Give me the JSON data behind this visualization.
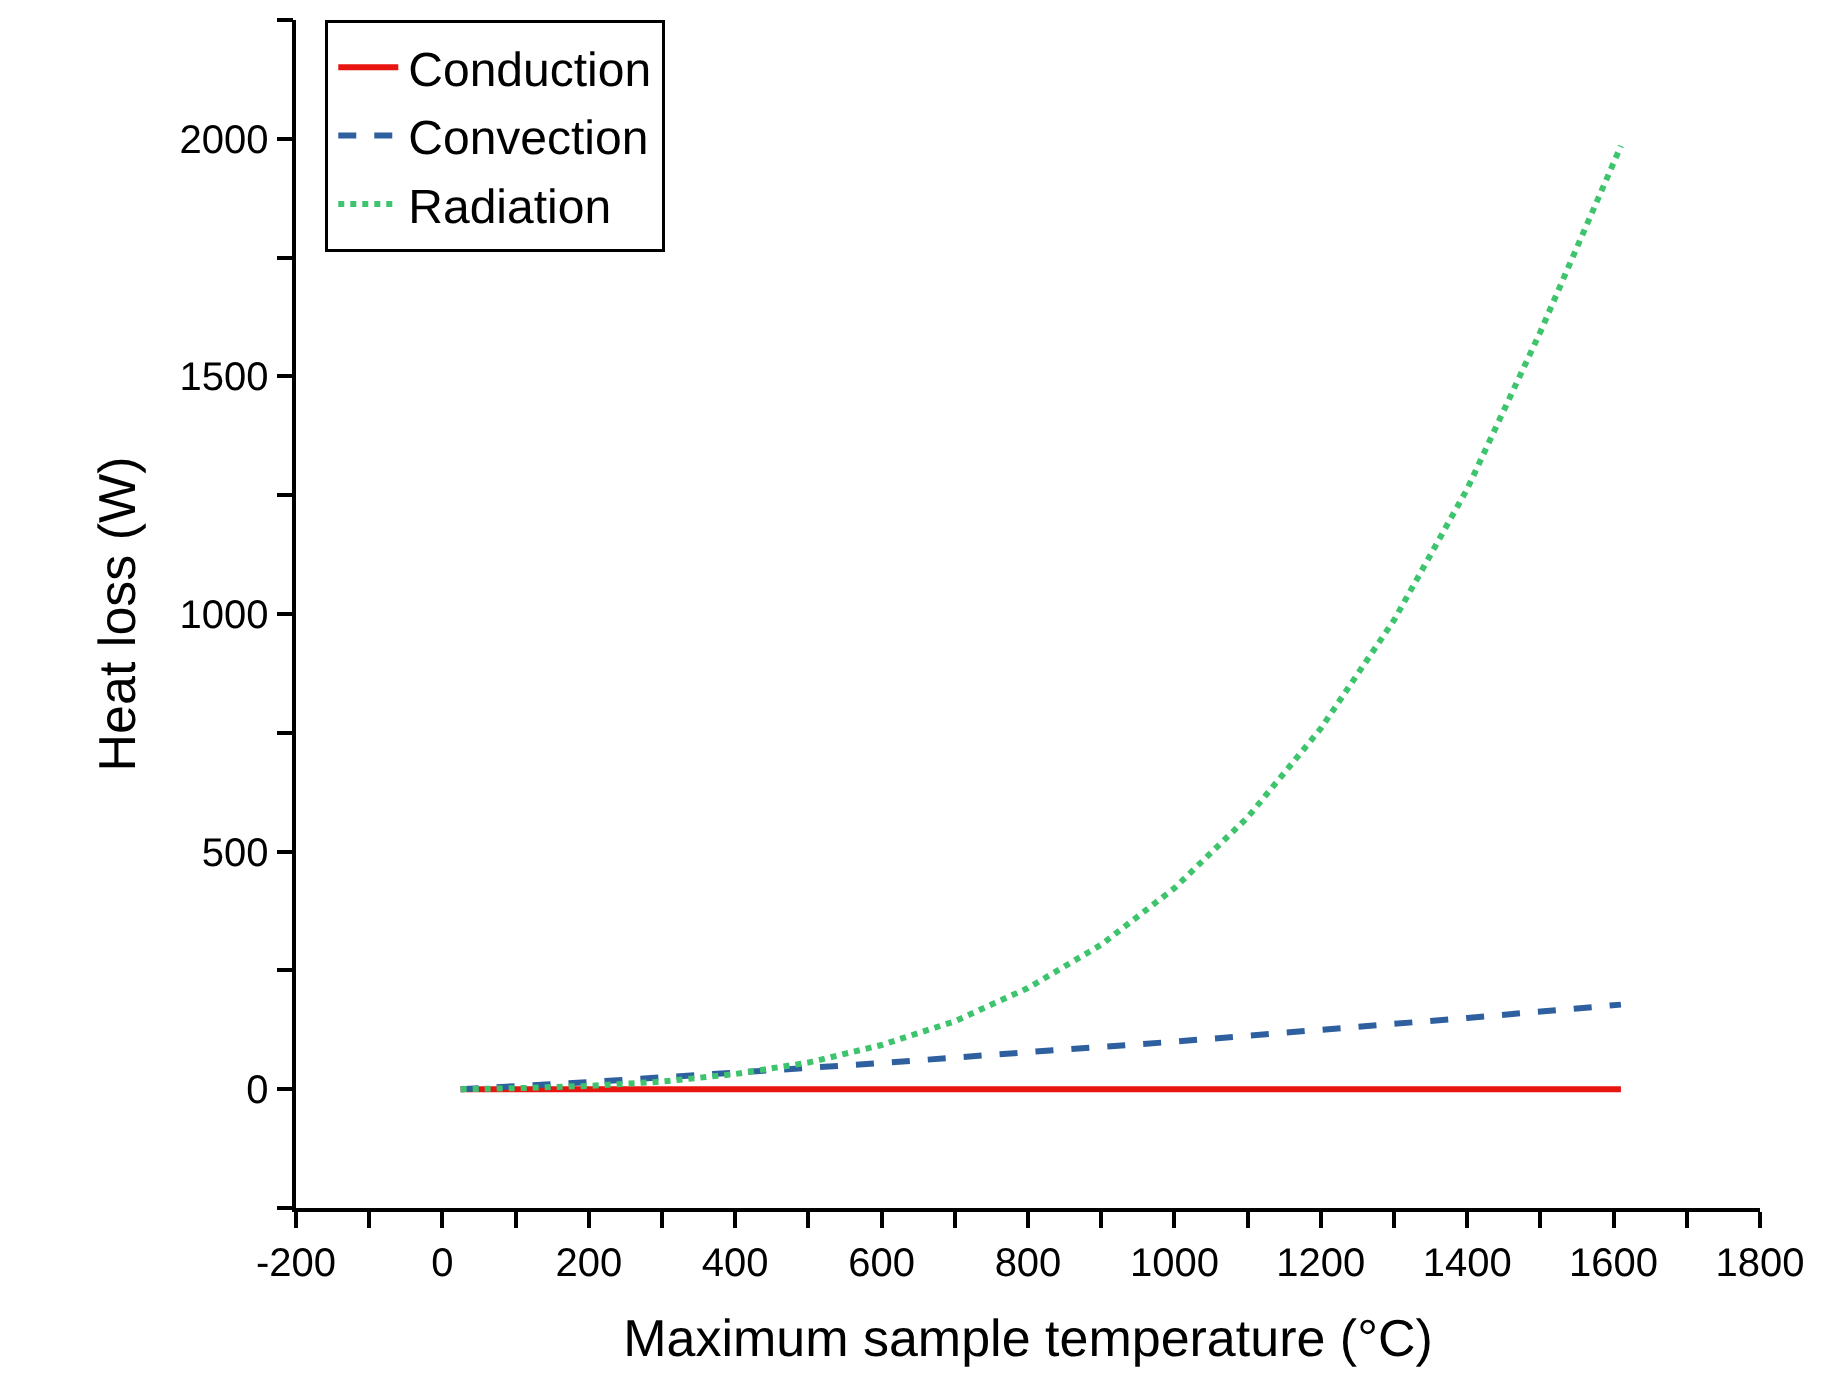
{
  "chart_data": {
    "type": "line",
    "xlabel": "Maximum sample temperature (°C)",
    "ylabel": "Heat loss (W)",
    "xlim": [
      -200,
      1800
    ],
    "ylim": [
      -250,
      2250
    ],
    "xticks": [
      -200,
      {
        "value": -100,
        "label": null
      },
      0,
      {
        "value": 100,
        "label": null
      },
      200,
      {
        "value": 300,
        "label": null
      },
      400,
      {
        "value": 500,
        "label": null
      },
      600,
      {
        "value": 700,
        "label": null
      },
      800,
      {
        "value": 900,
        "label": null
      },
      1000,
      {
        "value": 1100,
        "label": null
      },
      1200,
      {
        "value": 1300,
        "label": null
      },
      1400,
      {
        "value": 1500,
        "label": null
      },
      1600,
      {
        "value": 1700,
        "label": null
      },
      1800
    ],
    "yticks": [
      {
        "value": -250,
        "label": null
      },
      0,
      {
        "value": 250,
        "label": null
      },
      500,
      {
        "value": 750,
        "label": null
      },
      1000,
      {
        "value": 1250,
        "label": null
      },
      1500,
      {
        "value": 1750,
        "label": null
      },
      2000,
      {
        "value": 2250,
        "label": null
      }
    ],
    "legend": "top left",
    "marker": "none",
    "series": [
      {
        "name": "Conduction",
        "color": "#e8140f",
        "line_style": "solid",
        "x": [
          25,
          200,
          400,
          600,
          800,
          1000,
          1200,
          1400,
          1610
        ],
        "values": [
          0,
          0,
          0,
          0,
          0,
          0,
          0,
          0,
          0
        ]
      },
      {
        "name": "Convection",
        "color": "#2e5f9e",
        "line_style": "dashed",
        "x": [
          25,
          200,
          400,
          600,
          800,
          1000,
          1200,
          1400,
          1610
        ],
        "values": [
          0,
          15,
          35,
          55,
          78,
          100,
          125,
          150,
          178
        ]
      },
      {
        "name": "Radiation",
        "color": "#3ec46d",
        "line_style": "dotted",
        "x": [
          25,
          100,
          200,
          300,
          400,
          500,
          600,
          700,
          800,
          900,
          1000,
          1100,
          1200,
          1300,
          1400,
          1500,
          1610
        ],
        "values": [
          0,
          2,
          7,
          16,
          32,
          56,
          93,
          143,
          213,
          304,
          423,
          572,
          759,
          987,
          1263,
          1594,
          1985
        ]
      }
    ]
  }
}
